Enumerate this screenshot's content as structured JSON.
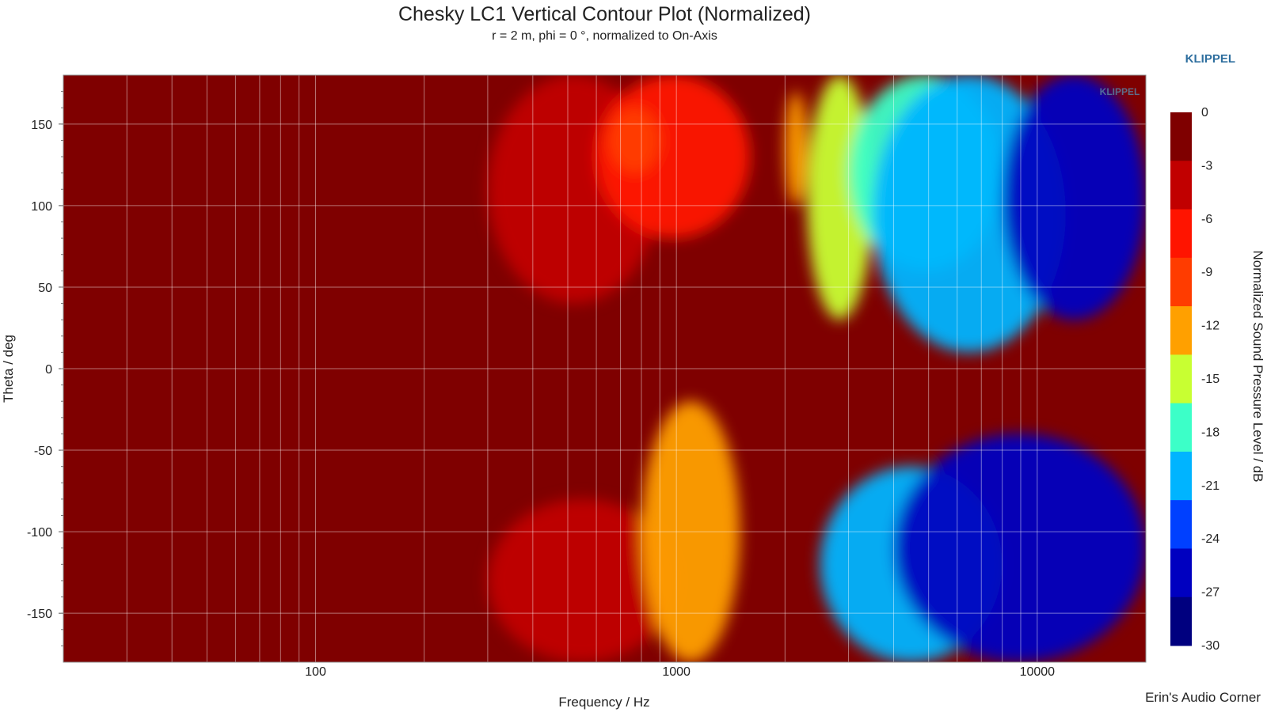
{
  "chart_data": {
    "type": "heatmap",
    "title": "Chesky LC1 Vertical Contour Plot (Normalized)",
    "subtitle": "r = 2 m, phi = 0 °, normalized to On-Axis",
    "xlabel": "Frequency / Hz",
    "ylabel": "Theta / deg",
    "x_scale": "log",
    "xlim": [
      20,
      20000
    ],
    "ylim": [
      -180,
      180
    ],
    "x_ticks": [
      {
        "value": 100,
        "label": "100"
      },
      {
        "value": 1000,
        "label": "1000"
      },
      {
        "value": 10000,
        "label": "10000"
      }
    ],
    "y_ticks": [
      {
        "value": 150,
        "label": "150"
      },
      {
        "value": 100,
        "label": "100"
      },
      {
        "value": 50,
        "label": "50"
      },
      {
        "value": 0,
        "label": "0"
      },
      {
        "value": -50,
        "label": "-50"
      },
      {
        "value": -100,
        "label": "-100"
      },
      {
        "value": -150,
        "label": "-150"
      }
    ],
    "colorbar": {
      "label": "Normalized Sound Pressure Level / dB",
      "ticks": [
        "0",
        "-3",
        "-6",
        "-9",
        "-12",
        "-15",
        "-18",
        "-21",
        "-24",
        "-27",
        "-30"
      ],
      "colors": [
        "#7f0000",
        "#c10000",
        "#ff1400",
        "#ff3c00",
        "#ffa000",
        "#c8ff32",
        "#3cffc8",
        "#00b4ff",
        "#0040ff",
        "#0000c0",
        "#00007f"
      ]
    },
    "grid": true,
    "regions": [
      {
        "level": "-3",
        "f": [
          300,
          900
        ],
        "theta": [
          40,
          180
        ]
      },
      {
        "level": "-6",
        "f": [
          600,
          1600
        ],
        "theta": [
          80,
          180
        ]
      },
      {
        "level": "-9",
        "f": [
          650,
          900
        ],
        "theta": [
          120,
          160
        ]
      },
      {
        "level": "-12",
        "f": [
          2000,
          2300
        ],
        "theta": [
          100,
          170
        ]
      },
      {
        "level": "-15",
        "f": [
          2300,
          3500
        ],
        "theta": [
          30,
          180
        ]
      },
      {
        "level": "-18",
        "f": [
          3000,
          8000
        ],
        "theta": [
          60,
          180
        ]
      },
      {
        "level": "-21",
        "f": [
          3500,
          12000
        ],
        "theta": [
          10,
          180
        ]
      },
      {
        "level": "-27",
        "f": [
          8000,
          20000
        ],
        "theta": [
          30,
          180
        ]
      },
      {
        "level": "-3",
        "f": [
          300,
          1000
        ],
        "theta": [
          -180,
          -80
        ]
      },
      {
        "level": "-12",
        "f": [
          800,
          1500
        ],
        "theta": [
          -180,
          -20
        ]
      },
      {
        "level": "-21",
        "f": [
          2500,
          8000
        ],
        "theta": [
          -180,
          -60
        ]
      },
      {
        "level": "-27",
        "f": [
          4000,
          20000
        ],
        "theta": [
          -180,
          -40
        ]
      }
    ]
  },
  "brand": {
    "top_label": "KLIPPEL",
    "watermark": "KLIPPEL",
    "credit": "Erin's Audio Corner"
  }
}
